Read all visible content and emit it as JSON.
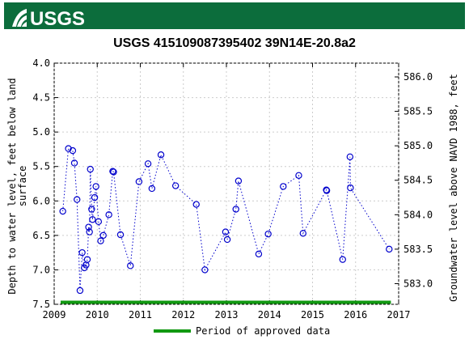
{
  "header": {
    "logo_text": "USGS",
    "brand_color": "#0c6d3c"
  },
  "chart_data": {
    "type": "scatter",
    "title": "USGS 415109087395402 39N14E-20.8a2",
    "ylabel_left": [
      "Depth to water level, feet below land",
      "surface"
    ],
    "ylabel_right": "Groundwater level above NAVD 1988, feet",
    "xlim": [
      2009,
      2017
    ],
    "ylim_left": [
      7.5,
      4.0
    ],
    "ylim_right": [
      582.7,
      586.2
    ],
    "x_ticks": [
      "2009",
      "2010",
      "2011",
      "2012",
      "2013",
      "2014",
      "2015",
      "2016",
      "2017"
    ],
    "y_ticks_left": [
      "4.0",
      "4.5",
      "5.0",
      "5.5",
      "6.0",
      "6.5",
      "7.0",
      "7.5"
    ],
    "y_ticks_right": [
      "583.0",
      "583.5",
      "584.0",
      "584.5",
      "585.0",
      "585.5",
      "586.0"
    ],
    "series": [
      {
        "marker_color": "#0000cc",
        "line_style": "dotted",
        "points": [
          [
            2009.2,
            6.15
          ],
          [
            2009.33,
            5.24
          ],
          [
            2009.43,
            5.27
          ],
          [
            2009.47,
            5.45
          ],
          [
            2009.53,
            5.98
          ],
          [
            2009.6,
            7.3
          ],
          [
            2009.65,
            6.75
          ],
          [
            2009.7,
            6.97
          ],
          [
            2009.74,
            6.93
          ],
          [
            2009.77,
            6.85
          ],
          [
            2009.8,
            6.38
          ],
          [
            2009.82,
            6.45
          ],
          [
            2009.84,
            5.54
          ],
          [
            2009.87,
            6.12
          ],
          [
            2009.89,
            6.27
          ],
          [
            2009.94,
            5.95
          ],
          [
            2009.97,
            5.79
          ],
          [
            2010.03,
            6.3
          ],
          [
            2010.08,
            6.58
          ],
          [
            2010.14,
            6.5
          ],
          [
            2010.27,
            6.2
          ],
          [
            2010.36,
            5.57
          ],
          [
            2010.38,
            5.58
          ],
          [
            2010.54,
            6.49
          ],
          [
            2010.77,
            6.94
          ],
          [
            2010.97,
            5.72
          ],
          [
            2011.18,
            5.46
          ],
          [
            2011.27,
            5.82
          ],
          [
            2011.48,
            5.33
          ],
          [
            2011.82,
            5.78
          ],
          [
            2012.3,
            6.05
          ],
          [
            2012.5,
            7.0
          ],
          [
            2012.98,
            6.45
          ],
          [
            2013.02,
            6.56
          ],
          [
            2013.22,
            6.12
          ],
          [
            2013.28,
            5.71
          ],
          [
            2013.75,
            6.77
          ],
          [
            2013.97,
            6.48
          ],
          [
            2014.32,
            5.79
          ],
          [
            2014.68,
            5.63
          ],
          [
            2014.78,
            6.47
          ],
          [
            2015.32,
            5.84
          ],
          [
            2015.33,
            5.85
          ],
          [
            2015.7,
            6.85
          ],
          [
            2015.87,
            5.36
          ],
          [
            2015.88,
            5.81
          ],
          [
            2016.78,
            6.7
          ]
        ]
      }
    ],
    "approved_period": {
      "start": 2009.15,
      "end": 2016.82,
      "color": "#119911",
      "label": "Period of approved data"
    },
    "legend_position": "bottom-center",
    "grid": true
  }
}
